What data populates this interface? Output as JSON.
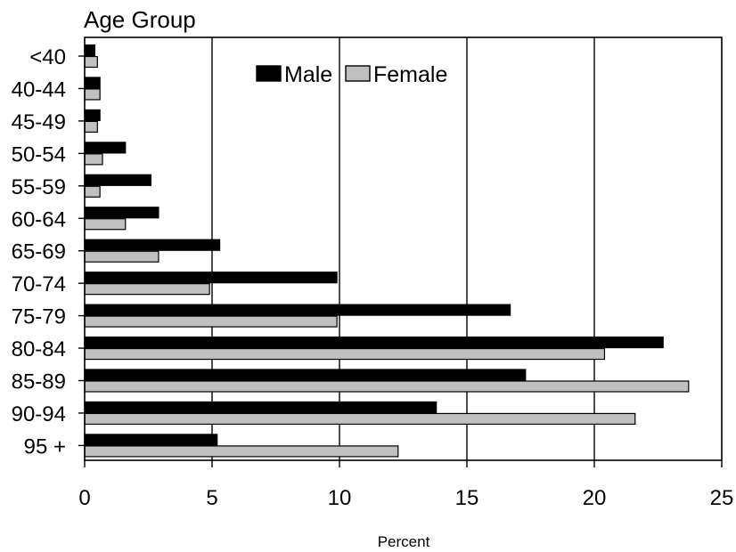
{
  "chart_data": {
    "type": "bar",
    "orientation": "horizontal",
    "ytitle": "Age Group",
    "xlabel": "Percent",
    "xlim": [
      0,
      25
    ],
    "xticks": [
      0,
      5,
      10,
      15,
      20,
      25
    ],
    "grid": "vertical",
    "legend_position": "top-center",
    "categories": [
      "<40",
      "40-44",
      "45-49",
      "50-54",
      "55-59",
      "60-64",
      "65-69",
      "70-74",
      "75-79",
      "80-84",
      "85-89",
      "90-94",
      "95 +"
    ],
    "series": [
      {
        "name": "Male",
        "color": "#000000",
        "values": [
          0.4,
          0.6,
          0.6,
          1.6,
          2.6,
          2.9,
          5.3,
          9.9,
          16.7,
          22.7,
          17.3,
          13.8,
          5.2
        ]
      },
      {
        "name": "Female",
        "color": "#c0c0c0",
        "values": [
          0.5,
          0.6,
          0.5,
          0.7,
          0.6,
          1.6,
          2.9,
          4.9,
          9.9,
          20.4,
          23.7,
          21.6,
          12.3
        ]
      }
    ]
  }
}
